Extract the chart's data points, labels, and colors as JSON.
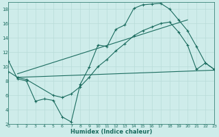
{
  "xlabel": "Humidex (Indice chaleur)",
  "background_color": "#ceecea",
  "grid_color": "#b8dbd8",
  "line_color": "#1a6b5e",
  "xlim": [
    0,
    23
  ],
  "ylim": [
    2,
    19
  ],
  "xticks": [
    0,
    1,
    2,
    3,
    4,
    5,
    6,
    7,
    8,
    9,
    10,
    11,
    12,
    13,
    14,
    15,
    16,
    17,
    18,
    19,
    20,
    21,
    22,
    23
  ],
  "yticks": [
    2,
    4,
    6,
    8,
    10,
    12,
    14,
    16,
    18
  ],
  "curve1_x": [
    0,
    1,
    2,
    3,
    4,
    5,
    6,
    7,
    8,
    9,
    10,
    11,
    12,
    13,
    14,
    15,
    16,
    17,
    18,
    19,
    20,
    21,
    22,
    23
  ],
  "curve1_y": [
    10.8,
    8.3,
    8.0,
    5.2,
    5.5,
    5.3,
    3.0,
    2.3,
    7.5,
    9.9,
    13.0,
    12.8,
    15.2,
    15.8,
    18.1,
    18.6,
    18.7,
    18.8,
    18.0,
    16.5,
    15.0,
    12.8,
    10.5,
    9.6
  ],
  "curve2_x": [
    0,
    1,
    2,
    5,
    6,
    7,
    8,
    9,
    10,
    11,
    12,
    13,
    14,
    15,
    16,
    17,
    18,
    19,
    20,
    21,
    22,
    23
  ],
  "curve2_y": [
    9.3,
    8.5,
    8.2,
    6.0,
    5.7,
    6.2,
    7.2,
    8.5,
    10.0,
    11.0,
    12.2,
    13.2,
    14.3,
    15.0,
    15.5,
    16.0,
    16.2,
    14.8,
    13.0,
    9.6,
    10.5,
    9.6
  ],
  "line3_x": [
    1,
    23
  ],
  "line3_y": [
    8.5,
    9.5
  ],
  "line4_x": [
    1,
    20
  ],
  "line4_y": [
    9.0,
    16.5
  ]
}
